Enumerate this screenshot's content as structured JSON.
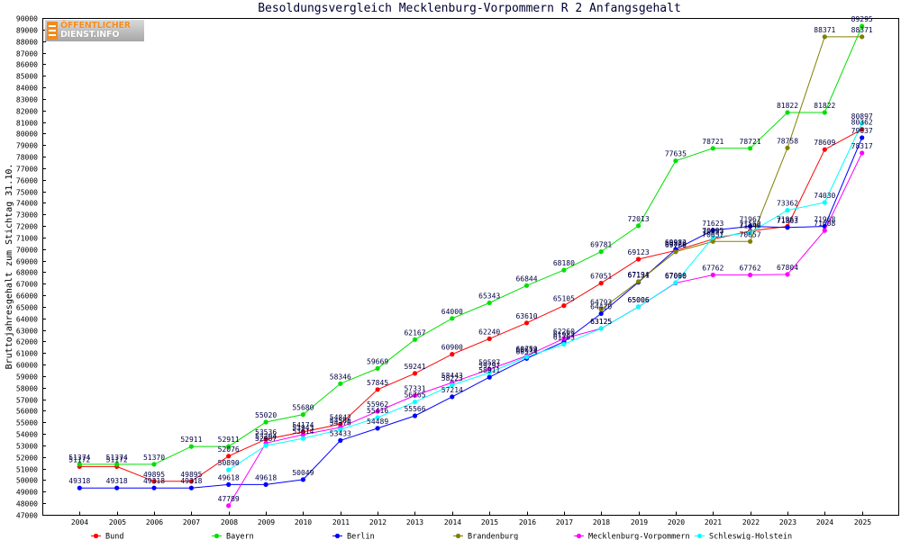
{
  "logo": {
    "line1": "ÖFFENTLICHER",
    "line2": "DIENST.INFO"
  },
  "chart_data": {
    "type": "line",
    "title": "Besoldungsvergleich Mecklenburg-Vorpommern R 2 Anfangsgehalt",
    "xlabel": "",
    "ylabel": "Bruttojahresgehalt zum Stichtag 31.10.",
    "x": [
      2004,
      2005,
      2006,
      2007,
      2008,
      2009,
      2010,
      2011,
      2012,
      2013,
      2014,
      2015,
      2016,
      2017,
      2018,
      2019,
      2020,
      2021,
      2022,
      2023,
      2024,
      2025
    ],
    "ylim": [
      47000,
      90000
    ],
    "yticks": [
      47000,
      48000,
      49000,
      50000,
      51000,
      52000,
      53000,
      54000,
      55000,
      56000,
      57000,
      58000,
      59000,
      60000,
      61000,
      62000,
      63000,
      64000,
      65000,
      66000,
      67000,
      68000,
      69000,
      70000,
      71000,
      72000,
      73000,
      74000,
      75000,
      76000,
      77000,
      78000,
      79000,
      80000,
      81000,
      82000,
      83000,
      84000,
      85000,
      86000,
      87000,
      88000,
      89000,
      90000
    ],
    "grid": false,
    "legend": "bottom",
    "series": [
      {
        "name": "Bund",
        "color": "#ff0000",
        "values": [
          51172,
          51172,
          49895,
          49895,
          52076,
          53536,
          54174,
          54842,
          57845,
          59241,
          60900,
          62240,
          63610,
          65105,
          67051,
          69123,
          69879,
          70857,
          71562,
          71967,
          78609,
          80362
        ]
      },
      {
        "name": "Bayern",
        "color": "#00e000",
        "values": [
          51374,
          51374,
          51370,
          52911,
          52911,
          55020,
          55680,
          58346,
          59669,
          62167,
          64000,
          65343,
          66844,
          68180,
          69781,
          72013,
          77635,
          78721,
          78721,
          81822,
          81822,
          89295
        ]
      },
      {
        "name": "Berlin",
        "color": "#0000ff",
        "values": [
          49318,
          49318,
          49318,
          49318,
          49618,
          49618,
          50049,
          53433,
          54489,
          55566,
          57214,
          58911,
          60534,
          61982,
          64420,
          67131,
          69982,
          71623,
          71967,
          71863,
          71968,
          79637
        ]
      },
      {
        "name": "Brandenburg",
        "color": "#808000",
        "values": [
          null,
          null,
          null,
          null,
          null,
          null,
          null,
          null,
          null,
          null,
          null,
          null,
          null,
          null,
          64793,
          67194,
          69760,
          70657,
          70657,
          78758,
          88371,
          88371
        ]
      },
      {
        "name": "Mecklenburg-Vorpommern",
        "color": "#ff00ff",
        "values": [
          null,
          null,
          null,
          null,
          47789,
          53204,
          53943,
          54566,
          55962,
          57331,
          58443,
          59587,
          60759,
          62260,
          63125,
          65006,
          67060,
          67762,
          67762,
          67804,
          71608,
          78317
        ]
      },
      {
        "name": "Schleswig-Holstein",
        "color": "#00ffff",
        "values": [
          null,
          null,
          null,
          null,
          50890,
          52987,
          53614,
          54376,
          55416,
          56765,
          58223,
          59297,
          60674,
          61763,
          63125,
          65006,
          67096,
          70995,
          71440,
          73362,
          74030,
          80897
        ]
      }
    ]
  }
}
